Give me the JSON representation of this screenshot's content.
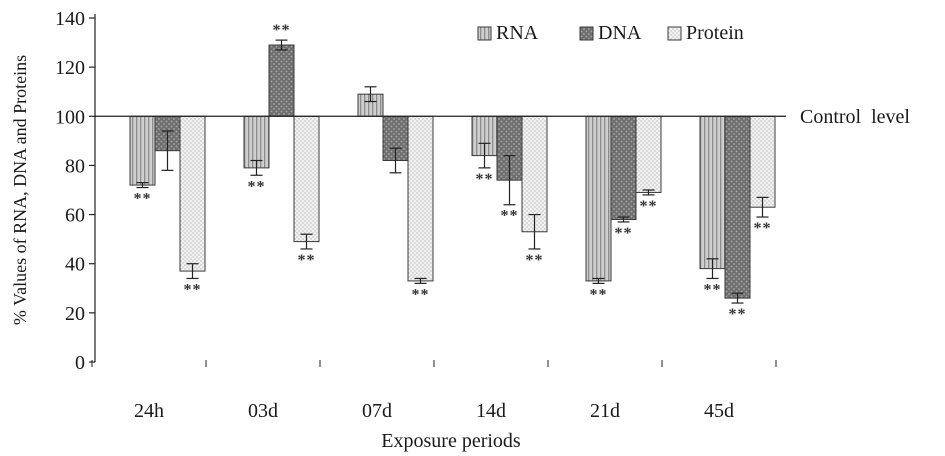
{
  "chart_data": {
    "type": "bar",
    "title": "",
    "xlabel": "Exposure periods",
    "ylabel": "% Values of RNA, DNA and Proteins",
    "ylim": [
      0,
      140
    ],
    "yticks": [
      0,
      20,
      40,
      60,
      80,
      100,
      120,
      140
    ],
    "baseline": 100,
    "baseline_label": "Control  level",
    "categories": [
      "24h",
      "03d",
      "07d",
      "14d",
      "21d",
      "45d"
    ],
    "series": [
      {
        "name": "RNA",
        "values": [
          72,
          79,
          109,
          84,
          33,
          38
        ],
        "errors": [
          1,
          3,
          3,
          5,
          1,
          4
        ],
        "significance": [
          "**",
          "**",
          "",
          "**",
          "**",
          "**"
        ]
      },
      {
        "name": "DNA",
        "values": [
          86,
          129,
          82,
          74,
          58,
          26
        ],
        "errors": [
          8,
          2,
          5,
          10,
          1,
          2
        ],
        "significance": [
          "",
          "**",
          "",
          "**",
          "**",
          "**"
        ]
      },
      {
        "name": "Protein",
        "values": [
          37,
          49,
          33,
          53,
          69,
          63
        ],
        "errors": [
          3,
          3,
          1,
          7,
          1,
          4
        ],
        "significance": [
          "**",
          "**",
          "**",
          "**",
          "**",
          "**"
        ]
      }
    ],
    "legend_position": "top-right",
    "grid": false
  },
  "colors": {
    "rna_fill": "#cfcfcf",
    "rna_stripe": "#8c8c8c",
    "dna_fill": "#6f6f6f",
    "dna_dot": "#a9a9a9",
    "protein_fill": "#f2f2f2",
    "protein_dot": "#b5b5b5",
    "axis": "#222222"
  }
}
